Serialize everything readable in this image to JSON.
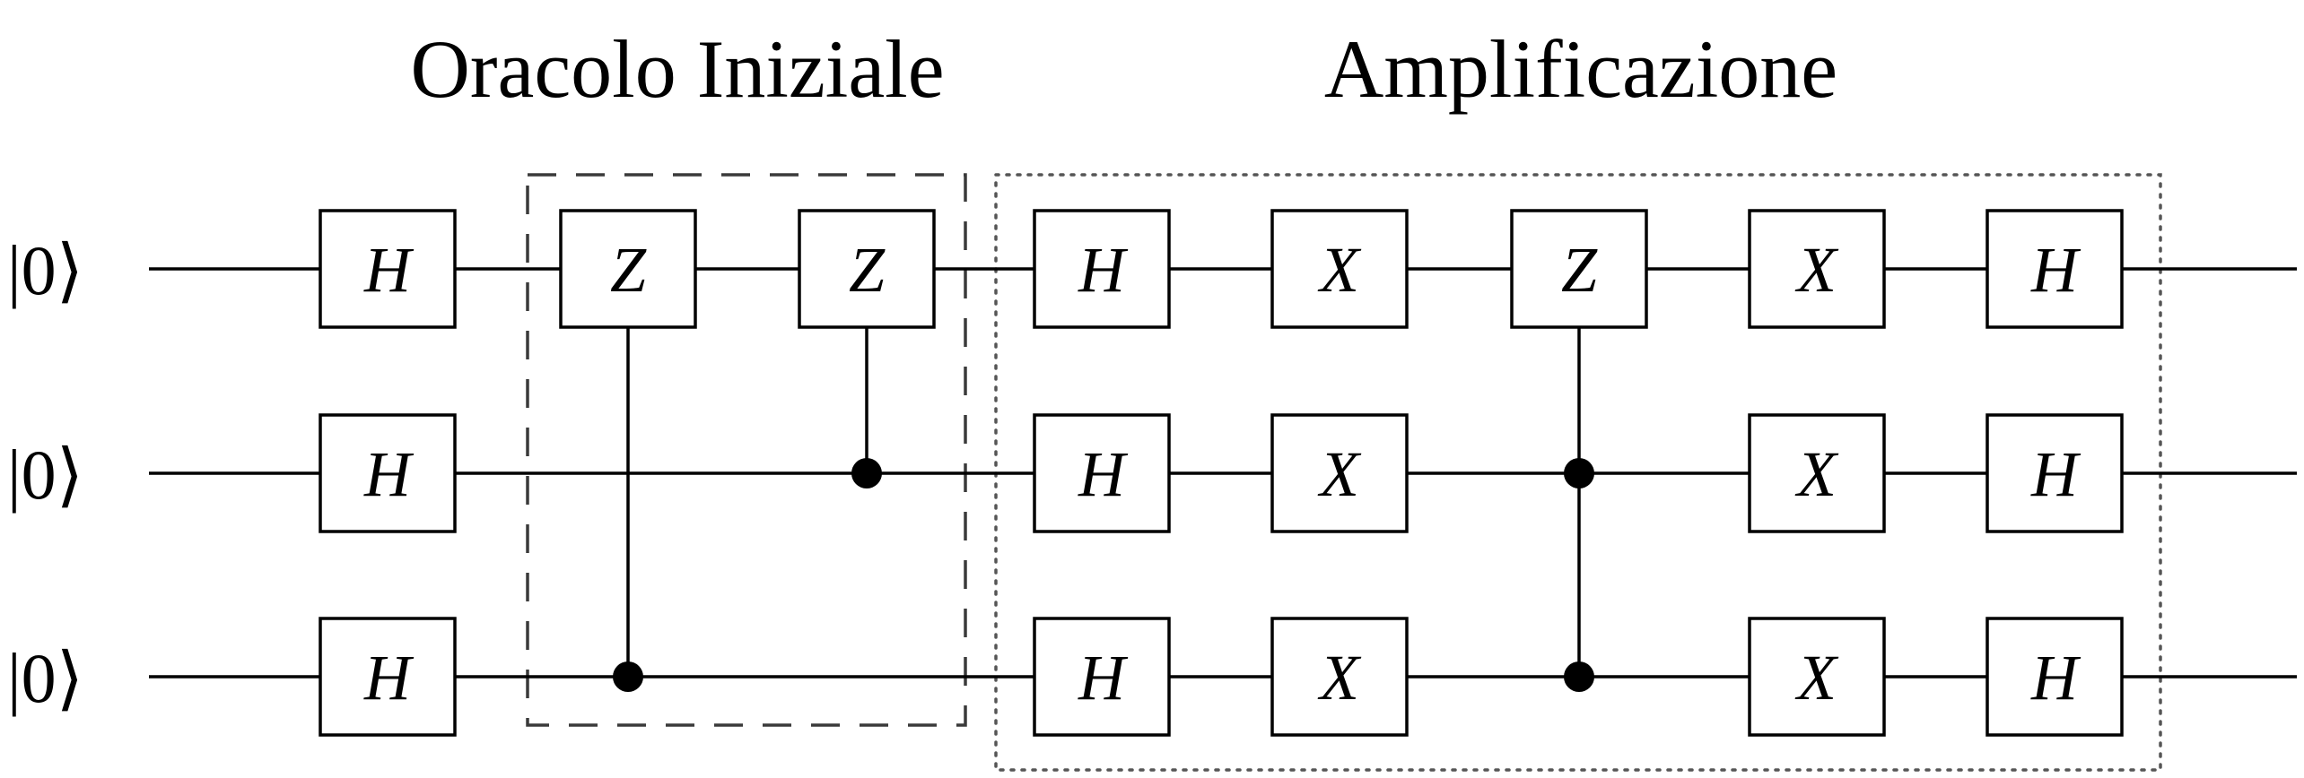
{
  "titles": {
    "oracle": "Oracolo Iniziale",
    "amplification": "Amplificazione"
  },
  "qubits": [
    {
      "init": "|0⟩"
    },
    {
      "init": "|0⟩"
    },
    {
      "init": "|0⟩"
    }
  ],
  "gates": [
    {
      "col": 0,
      "qubit": 0,
      "label": "H"
    },
    {
      "col": 0,
      "qubit": 1,
      "label": "H"
    },
    {
      "col": 0,
      "qubit": 2,
      "label": "H"
    },
    {
      "col": 1,
      "qubit": 0,
      "label": "Z"
    },
    {
      "col": 2,
      "qubit": 0,
      "label": "Z"
    },
    {
      "col": 3,
      "qubit": 0,
      "label": "H"
    },
    {
      "col": 3,
      "qubit": 1,
      "label": "H"
    },
    {
      "col": 3,
      "qubit": 2,
      "label": "H"
    },
    {
      "col": 4,
      "qubit": 0,
      "label": "X"
    },
    {
      "col": 4,
      "qubit": 1,
      "label": "X"
    },
    {
      "col": 4,
      "qubit": 2,
      "label": "X"
    },
    {
      "col": 5,
      "qubit": 0,
      "label": "Z"
    },
    {
      "col": 6,
      "qubit": 0,
      "label": "X"
    },
    {
      "col": 6,
      "qubit": 1,
      "label": "X"
    },
    {
      "col": 6,
      "qubit": 2,
      "label": "X"
    },
    {
      "col": 7,
      "qubit": 0,
      "label": "H"
    },
    {
      "col": 7,
      "qubit": 1,
      "label": "H"
    },
    {
      "col": 7,
      "qubit": 2,
      "label": "H"
    }
  ],
  "controls": [
    {
      "col": 1,
      "target": 0,
      "controls": [
        2
      ]
    },
    {
      "col": 2,
      "target": 0,
      "controls": [
        1
      ]
    },
    {
      "col": 5,
      "target": 0,
      "controls": [
        1,
        2
      ]
    }
  ]
}
